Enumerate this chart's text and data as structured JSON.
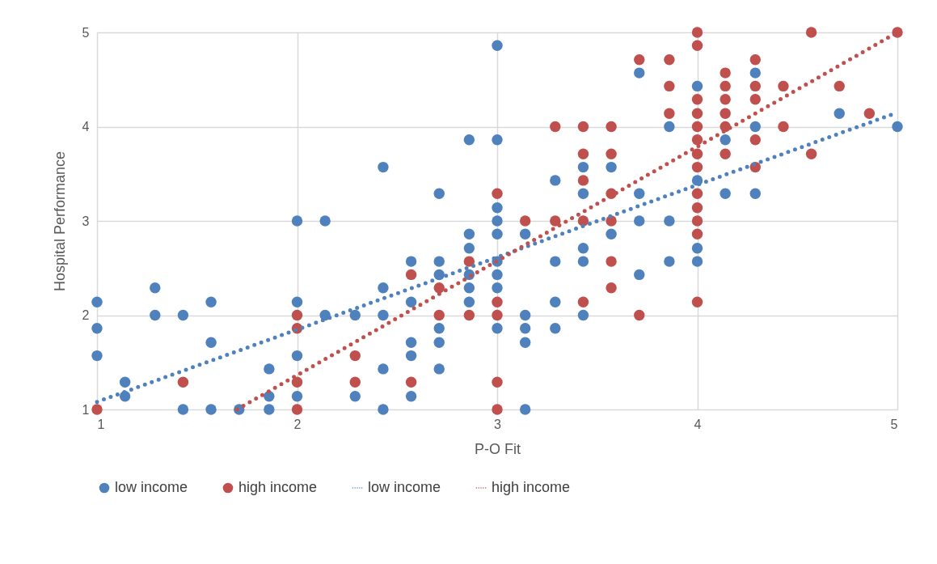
{
  "chart_data": {
    "type": "scatter",
    "xlabel": "P-O Fit",
    "ylabel": "Hospital Performance",
    "xlim": [
      1,
      5
    ],
    "ylim": [
      1,
      5
    ],
    "xticks": [
      1,
      2,
      3,
      4,
      5
    ],
    "yticks": [
      1,
      2,
      3,
      4,
      5
    ],
    "grid": true,
    "legend": "bottom",
    "series": [
      {
        "name": "low income",
        "color": "#4f81bd",
        "marker": "circle",
        "x": [
          1,
          1,
          1,
          1.14,
          1.14,
          1.29,
          1.29,
          1.43,
          1.43,
          1.57,
          1.57,
          1.57,
          1.71,
          1.86,
          1.86,
          1.86,
          2,
          2,
          2,
          2,
          2.14,
          2.14,
          2.29,
          2.29,
          2.43,
          2.43,
          2.43,
          2.43,
          2.43,
          2.57,
          2.57,
          2.57,
          2.57,
          2.57,
          2.71,
          2.71,
          2.71,
          2.71,
          2.71,
          2.71,
          2.86,
          2.86,
          2.86,
          2.86,
          2.86,
          2.86,
          3,
          3,
          3,
          3,
          3,
          3,
          3,
          3,
          3,
          3.14,
          3.14,
          3.14,
          3.14,
          3.14,
          3.29,
          3.29,
          3.29,
          3.29,
          3.43,
          3.43,
          3.43,
          3.43,
          3.43,
          3.57,
          3.57,
          3.71,
          3.71,
          3.71,
          3.71,
          3.86,
          3.86,
          3.86,
          4,
          4,
          4,
          4,
          4.14,
          4.14,
          4.29,
          4.29,
          4.29,
          4.71,
          5
        ],
        "values": [
          2.14,
          1.86,
          1.57,
          1.29,
          1.14,
          2.29,
          2,
          2,
          1,
          2.14,
          1.71,
          1,
          1,
          1.43,
          1.14,
          1,
          3,
          2.14,
          1.57,
          1.14,
          3,
          2,
          2,
          1.14,
          3.57,
          2.29,
          2,
          1.43,
          1,
          2.57,
          2.14,
          1.71,
          1.57,
          1.14,
          3.29,
          2.57,
          2.43,
          1.86,
          1.71,
          1.43,
          3.86,
          2.86,
          2.71,
          2.43,
          2.29,
          2.14,
          4.86,
          3.86,
          3.14,
          3,
          2.86,
          2.57,
          2.43,
          2.29,
          1.86,
          2.86,
          2,
          1.86,
          1.71,
          1,
          3.43,
          2.57,
          2.14,
          1.86,
          3.57,
          3.29,
          2.71,
          2.57,
          2,
          3.57,
          2.86,
          4.57,
          3.29,
          3,
          2.43,
          4,
          3,
          2.57,
          4.43,
          3.43,
          2.71,
          2.57,
          3.86,
          3.29,
          4.57,
          4,
          3.29,
          4.14,
          4
        ]
      },
      {
        "name": "high income",
        "color": "#c0504d",
        "marker": "circle",
        "x": [
          1,
          1.43,
          2,
          2,
          2,
          2,
          2.29,
          2.29,
          2.57,
          2.57,
          2.71,
          2.71,
          2.86,
          2.86,
          3,
          3,
          3,
          3,
          3,
          3.14,
          3.29,
          3.29,
          3.43,
          3.43,
          3.43,
          3.43,
          3.43,
          3.57,
          3.57,
          3.57,
          3.57,
          3.57,
          3.57,
          3.71,
          3.71,
          3.86,
          3.86,
          3.86,
          4,
          4,
          4,
          4,
          4,
          4,
          4,
          4,
          4,
          4,
          4,
          4,
          4,
          4.14,
          4.14,
          4.14,
          4.14,
          4.14,
          4.14,
          4.29,
          4.29,
          4.29,
          4.29,
          4.29,
          4.43,
          4.43,
          4.57,
          4.57,
          4.71,
          4.86,
          5
        ],
        "values": [
          1,
          1.29,
          2,
          1.86,
          1.29,
          1,
          1.57,
          1.29,
          2.43,
          1.29,
          2.29,
          2,
          2.57,
          2,
          3.29,
          2.14,
          2,
          1.29,
          1,
          3,
          4,
          3,
          4,
          3.71,
          3.43,
          3,
          2.14,
          4,
          3.71,
          3.29,
          3,
          2.57,
          2.29,
          4.71,
          2,
          4.71,
          4.43,
          4.14,
          5,
          4.86,
          4.29,
          4.14,
          4,
          3.86,
          3.71,
          3.57,
          3.29,
          3.14,
          3,
          2.86,
          2.14,
          4.57,
          4.43,
          4.29,
          4.14,
          4,
          3.71,
          4.71,
          4.43,
          4.29,
          3.86,
          3.57,
          4.43,
          4,
          5,
          3.71,
          4.43,
          4.14,
          5
        ]
      },
      {
        "type": "line",
        "name": "low income",
        "color": "#4f81bd",
        "line_style": "dotted",
        "marker": "none",
        "x": [
          1,
          5
        ],
        "values": [
          1.08,
          4.15
        ]
      },
      {
        "type": "line",
        "name": "high income",
        "color": "#c0504d",
        "line_style": "dotted",
        "marker": "none",
        "x": [
          1.7,
          5
        ],
        "values": [
          1,
          5
        ]
      }
    ]
  }
}
